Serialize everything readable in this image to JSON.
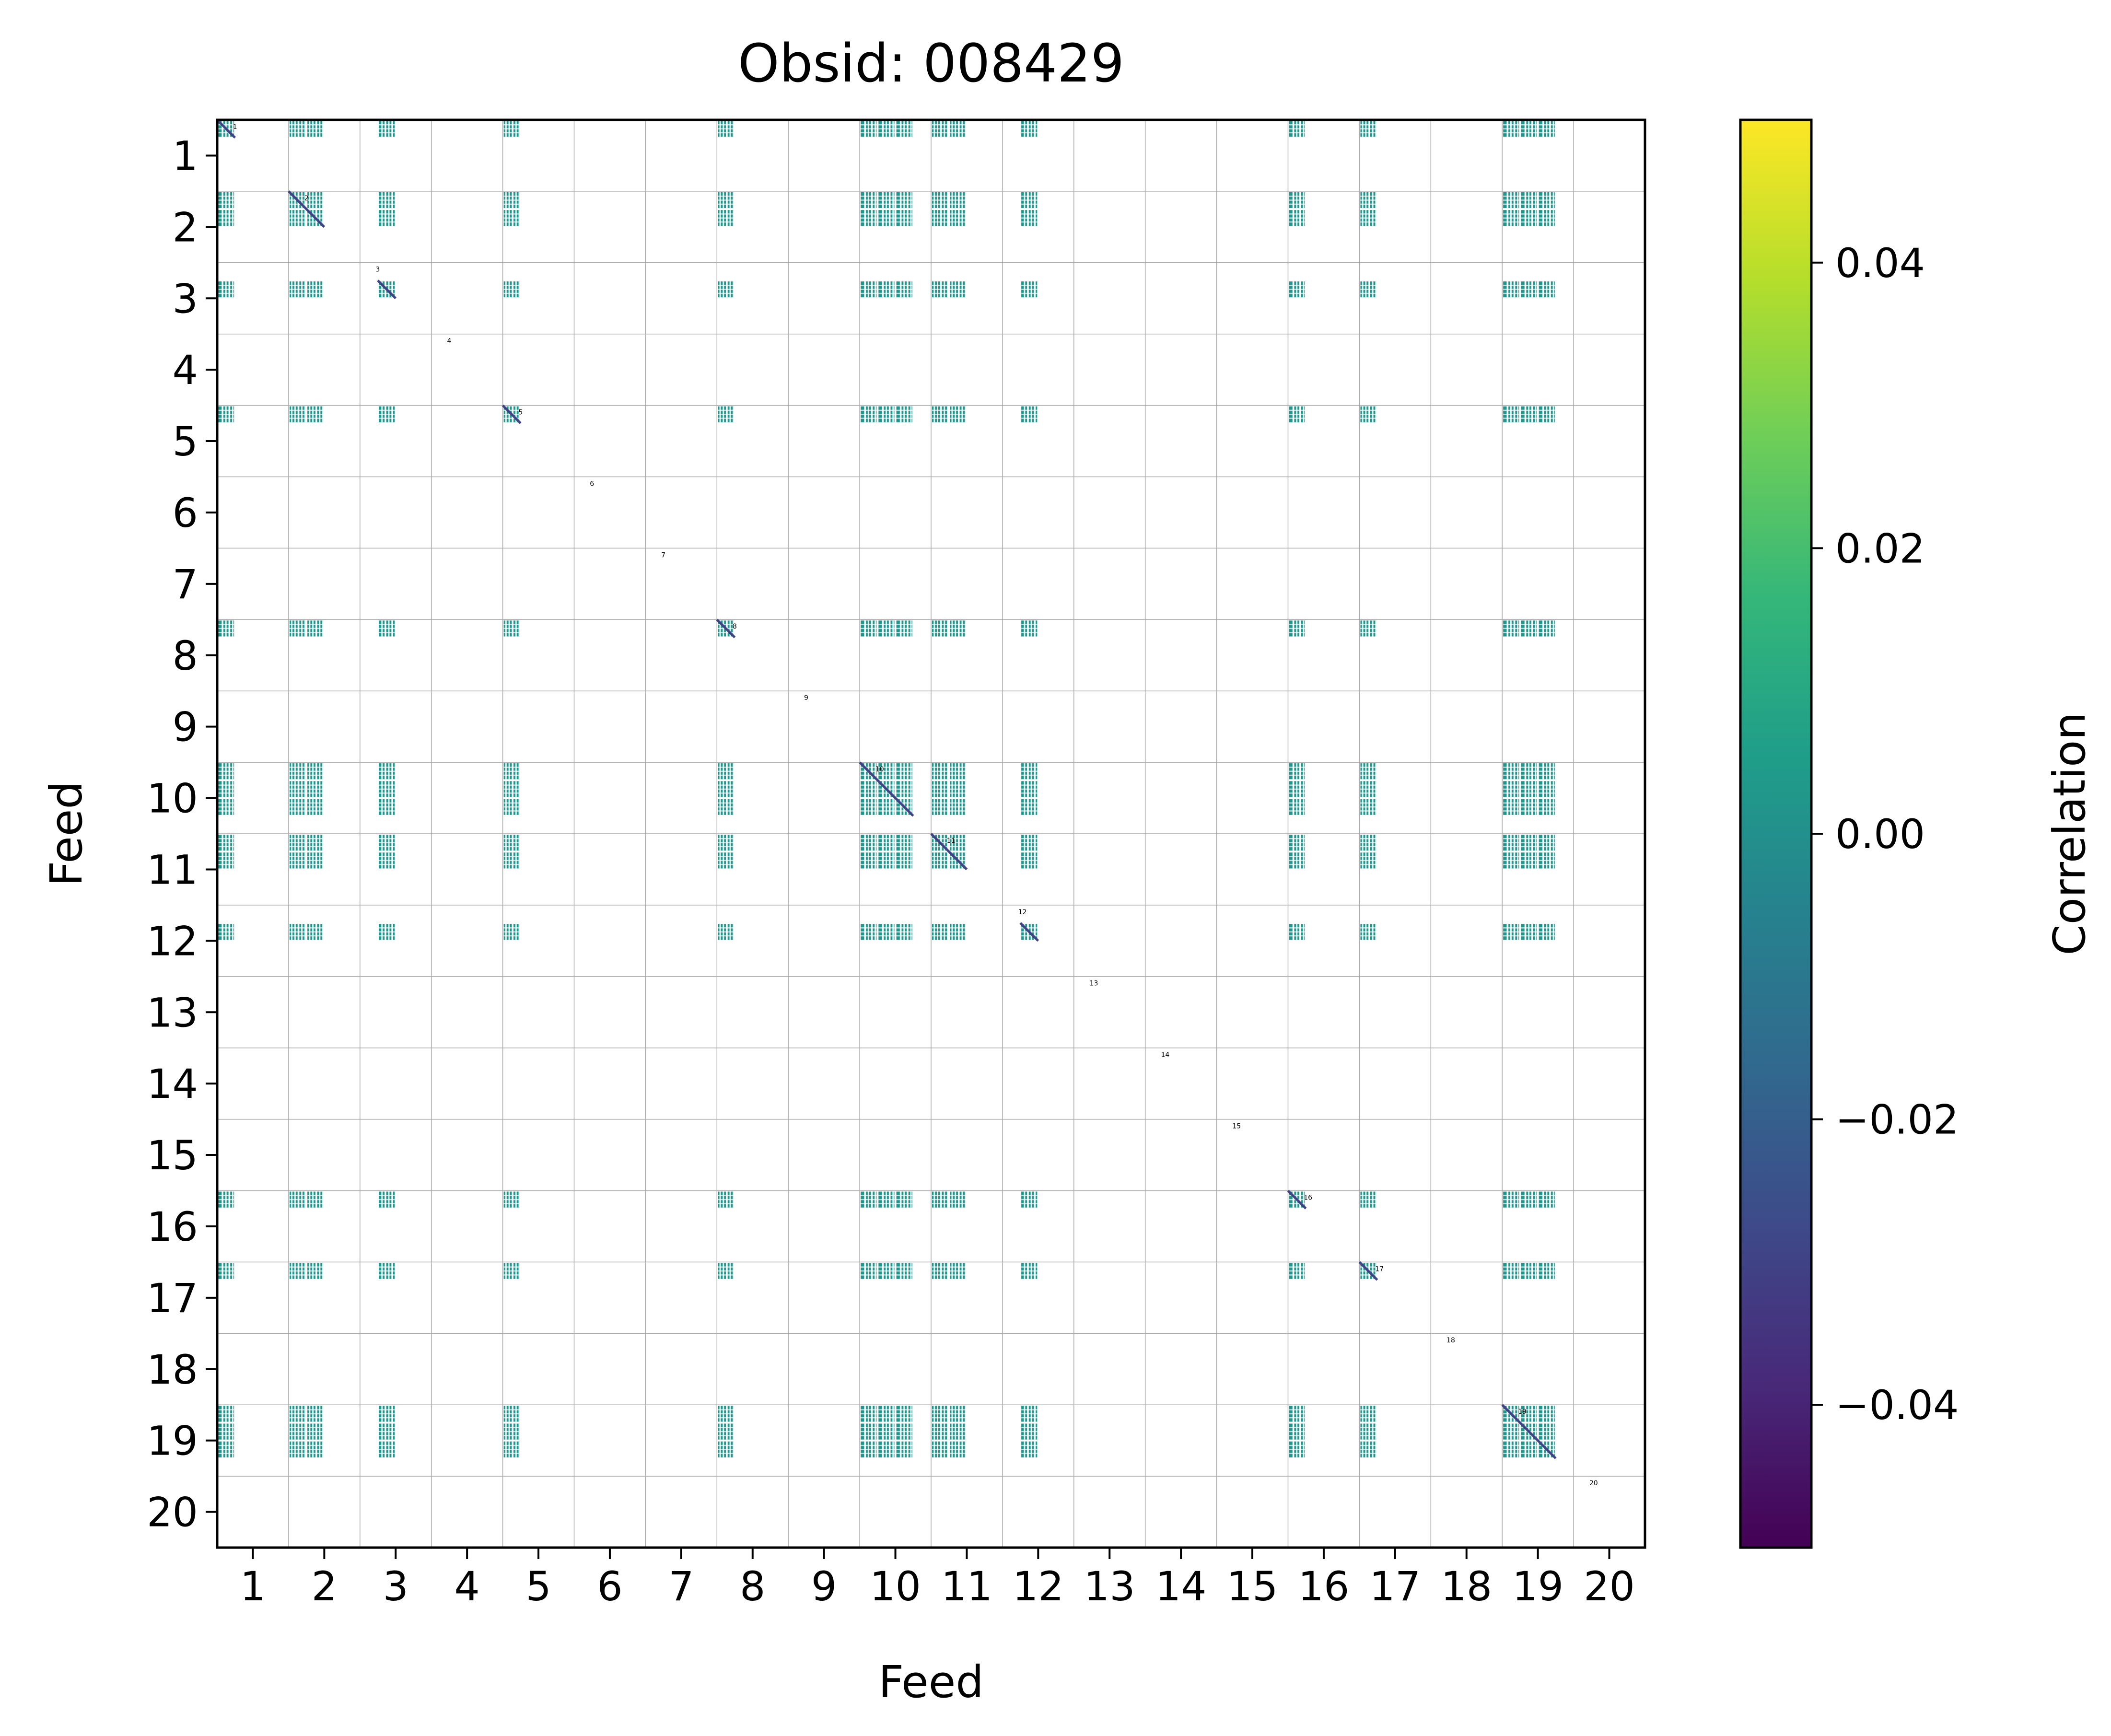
{
  "chart_data": {
    "type": "heatmap",
    "title": "Obsid: 008429",
    "xlabel": "Feed",
    "ylabel": "Feed",
    "feeds": [
      "1",
      "2",
      "3",
      "4",
      "5",
      "6",
      "7",
      "8",
      "9",
      "10",
      "11",
      "12",
      "13",
      "14",
      "15",
      "16",
      "17",
      "18",
      "19",
      "20"
    ],
    "sidebands_per_feed": 4,
    "active_feeds": [
      1,
      2,
      3,
      5,
      8,
      10,
      11,
      12,
      16,
      17,
      19
    ],
    "active_sidebands": {
      "1": [
        1
      ],
      "2": [
        1,
        2
      ],
      "3": [
        2
      ],
      "5": [
        1
      ],
      "8": [
        1
      ],
      "10": [
        1,
        2,
        3
      ],
      "11": [
        1,
        2
      ],
      "12": [
        2
      ],
      "16": [
        1
      ],
      "17": [
        1
      ],
      "19": [
        1,
        2,
        3
      ]
    },
    "block_value": 0.002,
    "diagonal_value": -0.03,
    "colorbar": {
      "label": "Correlation",
      "min": -0.05,
      "max": 0.05,
      "ticks": [
        0.04,
        0.02,
        0.0,
        -0.02,
        -0.04
      ],
      "tick_labels": [
        "0.04",
        "0.02",
        "0.00",
        "−0.02",
        "−0.04"
      ],
      "colormap": [
        "#440154",
        "#482878",
        "#3e4989",
        "#31688e",
        "#26828e",
        "#1f9e89",
        "#35b779",
        "#6ece58",
        "#b5de2b",
        "#fde725"
      ]
    },
    "grid": true,
    "colors": {
      "block": "#21918c",
      "diagonal": "#3b2f6b",
      "grid": "#aaaaaa"
    }
  }
}
